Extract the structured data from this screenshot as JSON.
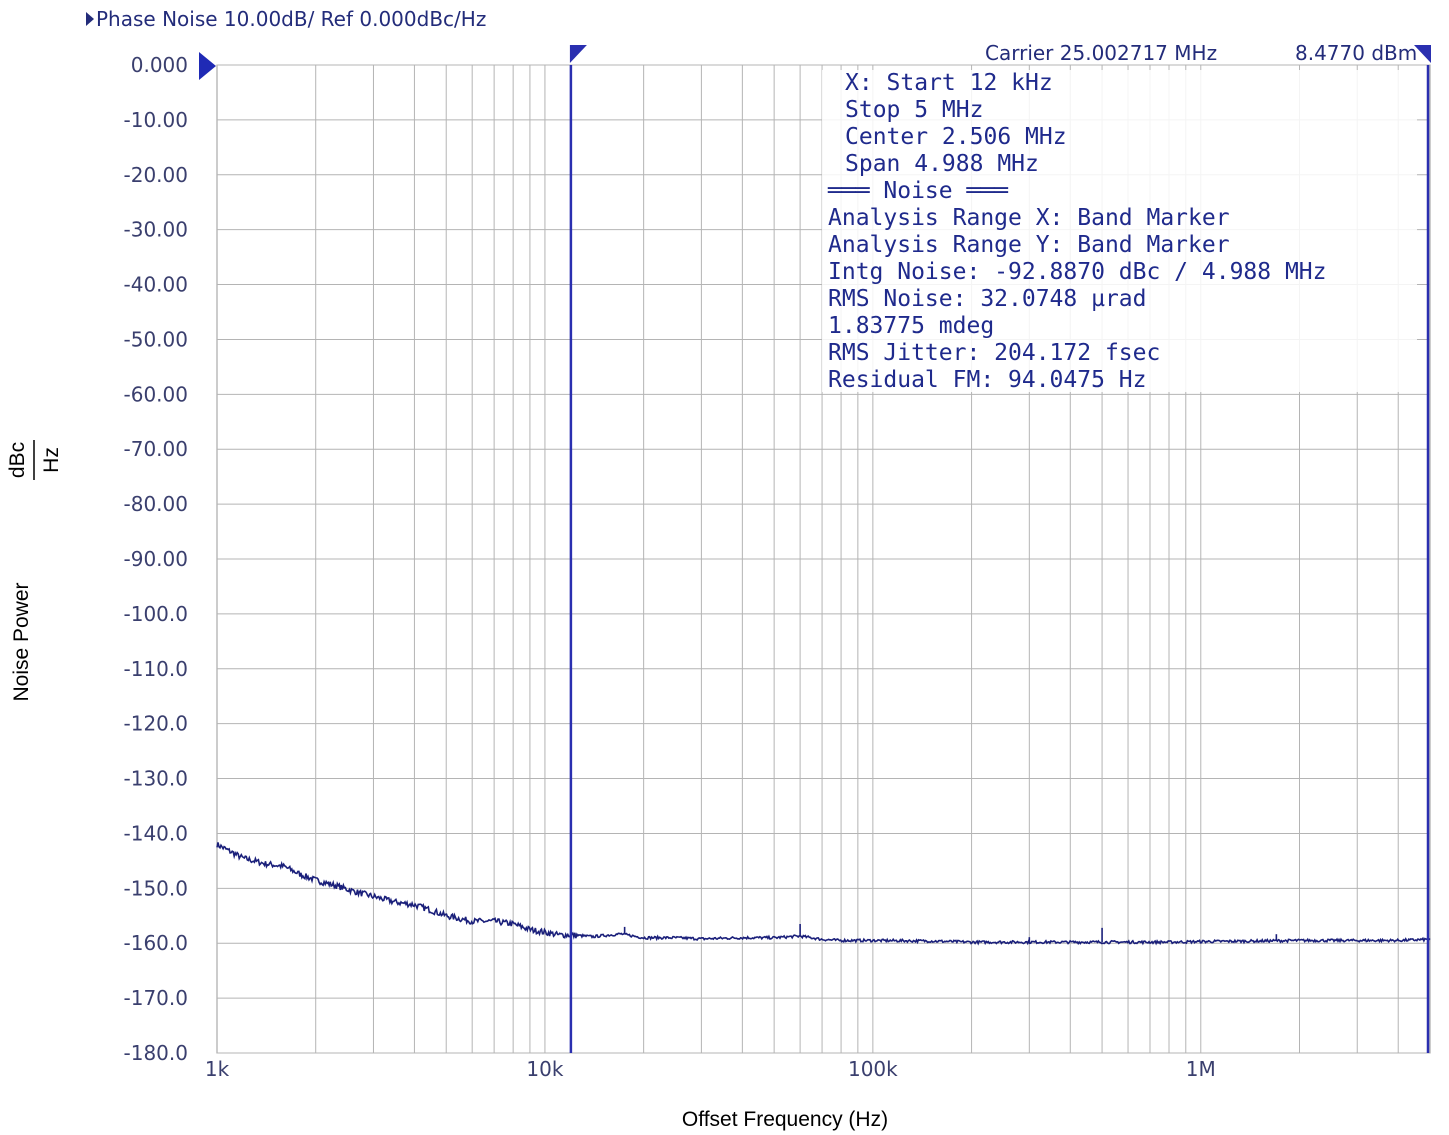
{
  "header": {
    "trace_label": "Phase Noise 10.00dB/ Ref 0.000dBc/Hz",
    "carrier": "Carrier 25.002717 MHz",
    "carrier_power": "8.4770 dBm"
  },
  "info_panel": [
    "X: Start 12 kHz",
    "   Stop 5 MHz",
    "  Center 2.506 MHz",
    "    Span 4.988 MHz",
    "═══ Noise ═══",
    "Analysis Range X: Band Marker",
    "Analysis Range Y: Band Marker",
    "Intg Noise: -92.8870 dBc / 4.988 MHz",
    " RMS Noise: 32.0748 µrad",
    "            1.83775 mdeg",
    "RMS Jitter: 204.172 fsec",
    "Residual FM: 94.0475 Hz"
  ],
  "colors": {
    "trace": "#1a1f7a",
    "marker": "#2a2fb0",
    "grid": "#b4b4b4",
    "text": "#232c7a"
  },
  "chart_data": {
    "type": "line",
    "title": "",
    "xlabel": "Offset Frequency (Hz)",
    "ylabel": "Noise Power",
    "ylabel_unit_num": "dBc",
    "ylabel_unit_den": "Hz",
    "x_scale": "log",
    "xlim": [
      1000,
      5000000
    ],
    "ylim": [
      -180,
      0
    ],
    "x_ticks": [
      {
        "value": 1000,
        "label": "1k"
      },
      {
        "value": 10000,
        "label": "10k"
      },
      {
        "value": 100000,
        "label": "100k"
      },
      {
        "value": 1000000,
        "label": "1M"
      }
    ],
    "y_ticks": [
      {
        "value": 0,
        "label": "0.000"
      },
      {
        "value": -10,
        "label": "-10.00"
      },
      {
        "value": -20,
        "label": "-20.00"
      },
      {
        "value": -30,
        "label": "-30.00"
      },
      {
        "value": -40,
        "label": "-40.00"
      },
      {
        "value": -50,
        "label": "-50.00"
      },
      {
        "value": -60,
        "label": "-60.00"
      },
      {
        "value": -70,
        "label": "-70.00"
      },
      {
        "value": -80,
        "label": "-80.00"
      },
      {
        "value": -90,
        "label": "-90.00"
      },
      {
        "value": -100,
        "label": "-100.0"
      },
      {
        "value": -110,
        "label": "-110.0"
      },
      {
        "value": -120,
        "label": "-120.0"
      },
      {
        "value": -130,
        "label": "-130.0"
      },
      {
        "value": -140,
        "label": "-140.0"
      },
      {
        "value": -150,
        "label": "-150.0"
      },
      {
        "value": -160,
        "label": "-160.0"
      },
      {
        "value": -170,
        "label": "-170.0"
      },
      {
        "value": -180,
        "label": "-180.0"
      }
    ],
    "grid": true,
    "markers": [
      {
        "x": 12000
      },
      {
        "x": 5000000
      }
    ],
    "reference_level": 0,
    "series": [
      {
        "x": [
          1000,
          1200,
          1400,
          1600,
          1800,
          2000,
          2300,
          2600,
          3000,
          3500,
          4000,
          4500,
          5000,
          6000,
          7000,
          8000,
          9000,
          10000,
          11000,
          12000,
          14000,
          17000,
          20000,
          25000,
          30000,
          40000,
          50000,
          60000,
          70000,
          80000,
          100000,
          150000,
          200000,
          300000,
          400000,
          500000,
          600000,
          800000,
          1000000,
          1500000,
          2000000,
          3000000,
          4000000,
          5000000
        ],
        "y": [
          -142,
          -144.5,
          -145.5,
          -146,
          -147.5,
          -148.5,
          -149.5,
          -150.5,
          -151.5,
          -152.5,
          -153,
          -154,
          -155,
          -156,
          -156,
          -156.5,
          -157.5,
          -158,
          -158.5,
          -158.5,
          -158.8,
          -158.3,
          -159,
          -159,
          -159.2,
          -159,
          -159,
          -158.7,
          -159.3,
          -159.5,
          -159.5,
          -159.6,
          -159.8,
          -159.8,
          -159.8,
          -159.8,
          -159.8,
          -159.8,
          -159.7,
          -159.6,
          -159.5,
          -159.5,
          -159.5,
          -159.3
        ]
      }
    ]
  }
}
